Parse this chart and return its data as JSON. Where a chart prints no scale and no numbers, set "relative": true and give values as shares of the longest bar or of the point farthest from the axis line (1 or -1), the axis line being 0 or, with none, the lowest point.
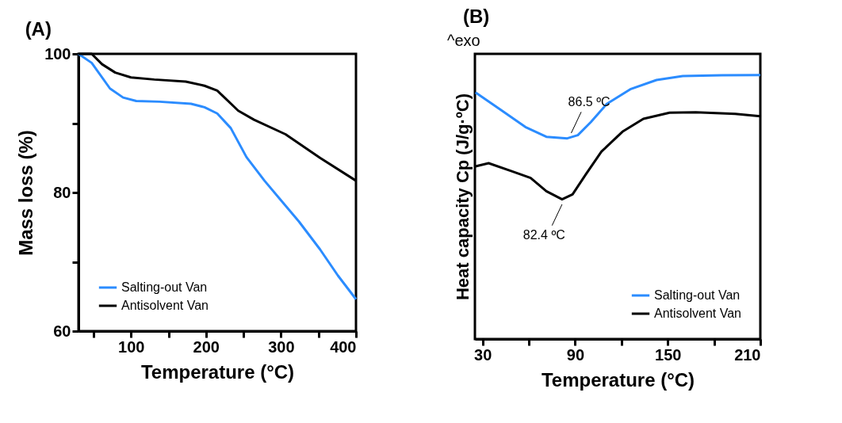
{
  "chart_data": [
    {
      "type": "line",
      "title": "(A)",
      "xlabel": "Temperature (°C)",
      "ylabel": "Mass loss  (%)",
      "xlim": [
        30,
        400
      ],
      "ylim": [
        60,
        100
      ],
      "xticks": [
        {
          "value": 50,
          "label": null
        },
        100,
        {
          "value": 150,
          "label": null
        },
        200,
        {
          "value": 250,
          "label": null
        },
        300,
        {
          "value": 350,
          "label": null
        },
        400
      ],
      "yticks": [
        60,
        {
          "value": 70,
          "label": null
        },
        80,
        {
          "value": 90,
          "label": null
        },
        100
      ],
      "legend": "bottom left",
      "series": [
        {
          "name": "Salting-out Van",
          "color": "#2b8cff",
          "x": [
            30,
            47.6,
            72,
            89.5,
            107,
            138,
            180,
            198,
            215,
            233,
            254,
            278,
            299,
            324,
            352,
            376,
            400
          ],
          "values": [
            100,
            98.7,
            95.0,
            93.7,
            93.2,
            93.1,
            92.8,
            92.3,
            91.4,
            89.3,
            85.1,
            81.7,
            79.0,
            75.8,
            71.8,
            68.0,
            64.6
          ]
        },
        {
          "name": "Antisolvent Van",
          "color": "#000000",
          "x": [
            30,
            47.6,
            61.5,
            79,
            100,
            131,
            173,
            198,
            215,
            243,
            264,
            306,
            352,
            400
          ],
          "values": [
            100,
            100,
            98.5,
            97.3,
            96.6,
            96.3,
            96.0,
            95.4,
            94.7,
            91.8,
            90.5,
            88.4,
            85.0,
            81.7
          ]
        }
      ]
    },
    {
      "type": "line",
      "title": "(B)",
      "xlabel": "Temperature (°C)",
      "ylabel": "Heat capacity Cp (J/g·ºC)",
      "relative": true,
      "xlim": [
        25,
        210
      ],
      "xticks": [
        30,
        {
          "value": 60,
          "label": null
        },
        90,
        {
          "value": 120,
          "label": null
        },
        150,
        {
          "value": 180,
          "label": null
        },
        210
      ],
      "legend": "bottom right",
      "annotations": [
        "^exo",
        {
          "text": "86.5 ºC",
          "x": 86.5,
          "y": 0.76
        },
        {
          "text": "82.4 ºC",
          "x": 82.4,
          "y": 0.53
        }
      ],
      "series": [
        {
          "name": "Salting-out Van",
          "color": "#2b8cff",
          "x": [
            25.4,
            40.7,
            57.7,
            71.3,
            84.9,
            91.7,
            100.2,
            110.4,
            125.7,
            142.7,
            159.7,
            185.2,
            210
          ],
          "values": [
            0.934,
            0.872,
            0.803,
            0.766,
            0.76,
            0.772,
            0.822,
            0.89,
            0.946,
            0.981,
            0.996,
            0.999,
            1
          ]
        },
        {
          "name": "Antisolvent Van",
          "color": "#000000",
          "x": [
            25.4,
            33.9,
            49.2,
            61.1,
            71.3,
            81.5,
            88.3,
            96.8,
            107,
            120.6,
            134.2,
            151.2,
            168.2,
            193.7,
            210
          ],
          "values": [
            0.654,
            0.666,
            0.635,
            0.61,
            0.56,
            0.529,
            0.548,
            0.623,
            0.71,
            0.785,
            0.834,
            0.857,
            0.859,
            0.853,
            0.844
          ]
        }
      ]
    }
  ]
}
